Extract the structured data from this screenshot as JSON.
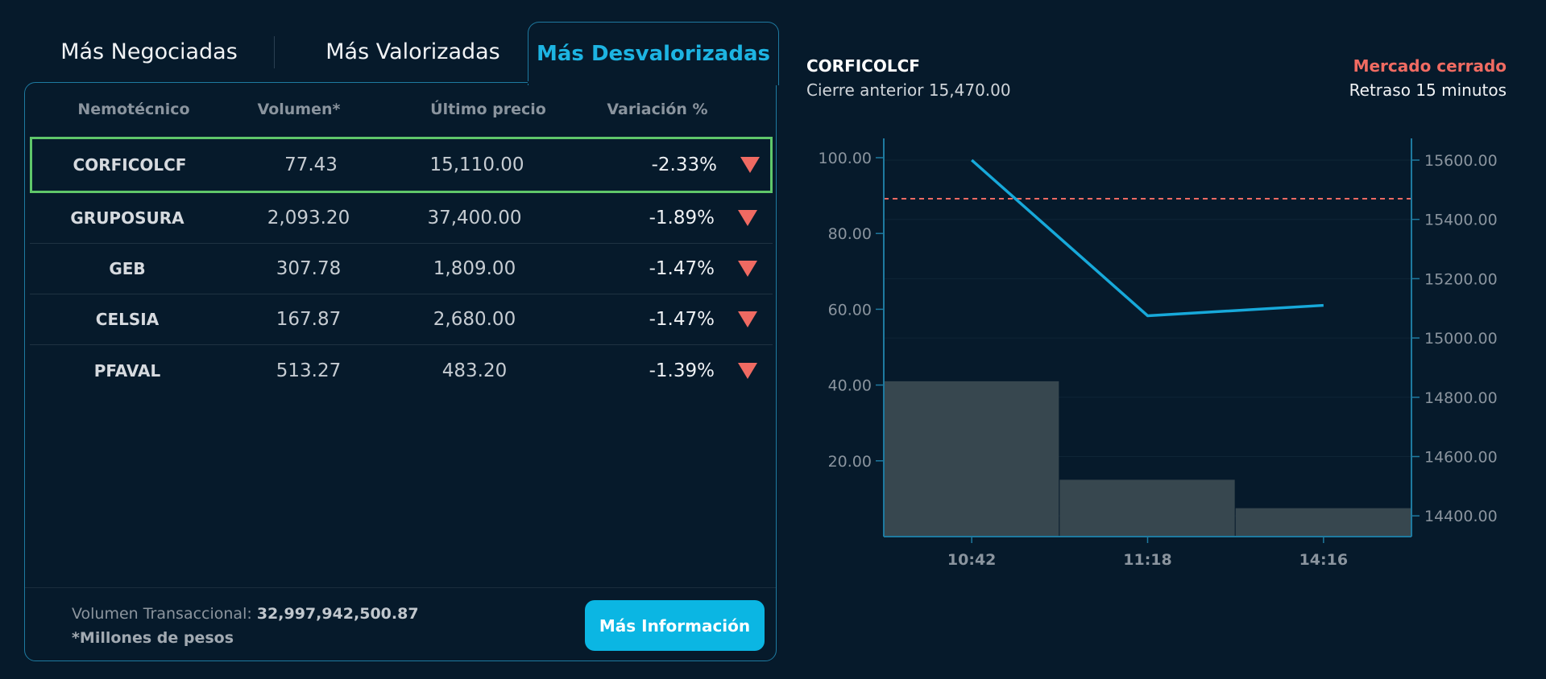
{
  "tabs": [
    {
      "label": "Más Negociadas",
      "active": false
    },
    {
      "label": "Más Valorizadas",
      "active": false
    },
    {
      "label": "Más Desvalorizadas",
      "active": true
    }
  ],
  "table": {
    "headers": [
      "Nemotécnico",
      "Volumen*",
      "Último precio",
      "Variación %"
    ],
    "rows": [
      {
        "name": "CORFICOLCF",
        "volume": "77.43",
        "price": "15,110.00",
        "change": "-2.33%",
        "selected": true
      },
      {
        "name": "GRUPOSURA",
        "volume": "2,093.20",
        "price": "37,400.00",
        "change": "-1.89%"
      },
      {
        "name": "GEB",
        "volume": "307.78",
        "price": "1,809.00",
        "change": "-1.47%"
      },
      {
        "name": "CELSIA",
        "volume": "167.87",
        "price": "2,680.00",
        "change": "-1.47%"
      },
      {
        "name": "PFAVAL",
        "volume": "513.27",
        "price": "483.20",
        "change": "-1.39%"
      }
    ],
    "arrow_color": "#ef6a62"
  },
  "footer": {
    "volume_label": "Volumen Transaccional:",
    "volume_value": "32,997,942,500.87",
    "note": "*Millones de pesos",
    "button_label": "Más Información"
  },
  "detail": {
    "ticker": "CORFICOLCF",
    "previous_close": "Cierre anterior 15,470.00",
    "market_status": "Mercado cerrado",
    "delay": "Retraso 15 minutos"
  },
  "chart_data": {
    "type": "bar+line",
    "categories": [
      "10:42",
      "11:18",
      "14:16"
    ],
    "bar_values": [
      41,
      15,
      7.5
    ],
    "line_values": [
      15600,
      15075,
      15110
    ],
    "reference_line": 15470,
    "left_axis": {
      "ticks": [
        "100.00",
        "80.00",
        "60.00",
        "40.00",
        "20.00"
      ],
      "range": [
        0,
        100
      ]
    },
    "right_axis": {
      "ticks": [
        "15600.00",
        "15400.00",
        "15200.00",
        "15000.00",
        "14800.00",
        "14600.00",
        "14400.00"
      ],
      "range": [
        14330,
        15670
      ]
    },
    "grid": true,
    "colors": {
      "bar": "#37474f",
      "line": "#17a9da",
      "reference": "#ef6a62",
      "axis": "#1e7aa0"
    }
  }
}
